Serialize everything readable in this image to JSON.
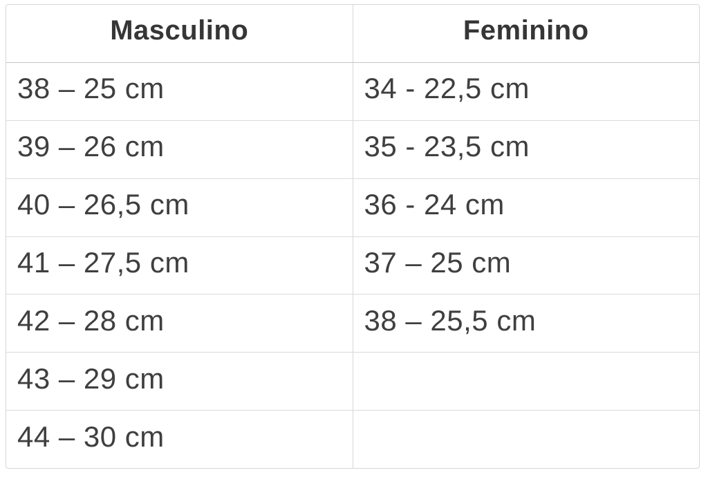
{
  "colors": {
    "background": "#ffffff",
    "text": "#3f3f3f",
    "header_text": "#363636",
    "border": "#d6d6d6",
    "header_border": "#c6c6c6"
  },
  "chart_data": {
    "type": "table",
    "columns": [
      "Masculino",
      "Feminino"
    ],
    "rows": [
      [
        "38 – 25 cm",
        "34 - 22,5 cm"
      ],
      [
        "39 – 26 cm",
        "35 - 23,5 cm"
      ],
      [
        "40 – 26,5 cm",
        "36 - 24 cm"
      ],
      [
        "41 – 27,5 cm",
        "37 – 25 cm"
      ],
      [
        "42 – 28 cm",
        "38 – 25,5 cm"
      ],
      [
        "43 – 29 cm",
        ""
      ],
      [
        "44 – 30 cm",
        ""
      ]
    ]
  }
}
